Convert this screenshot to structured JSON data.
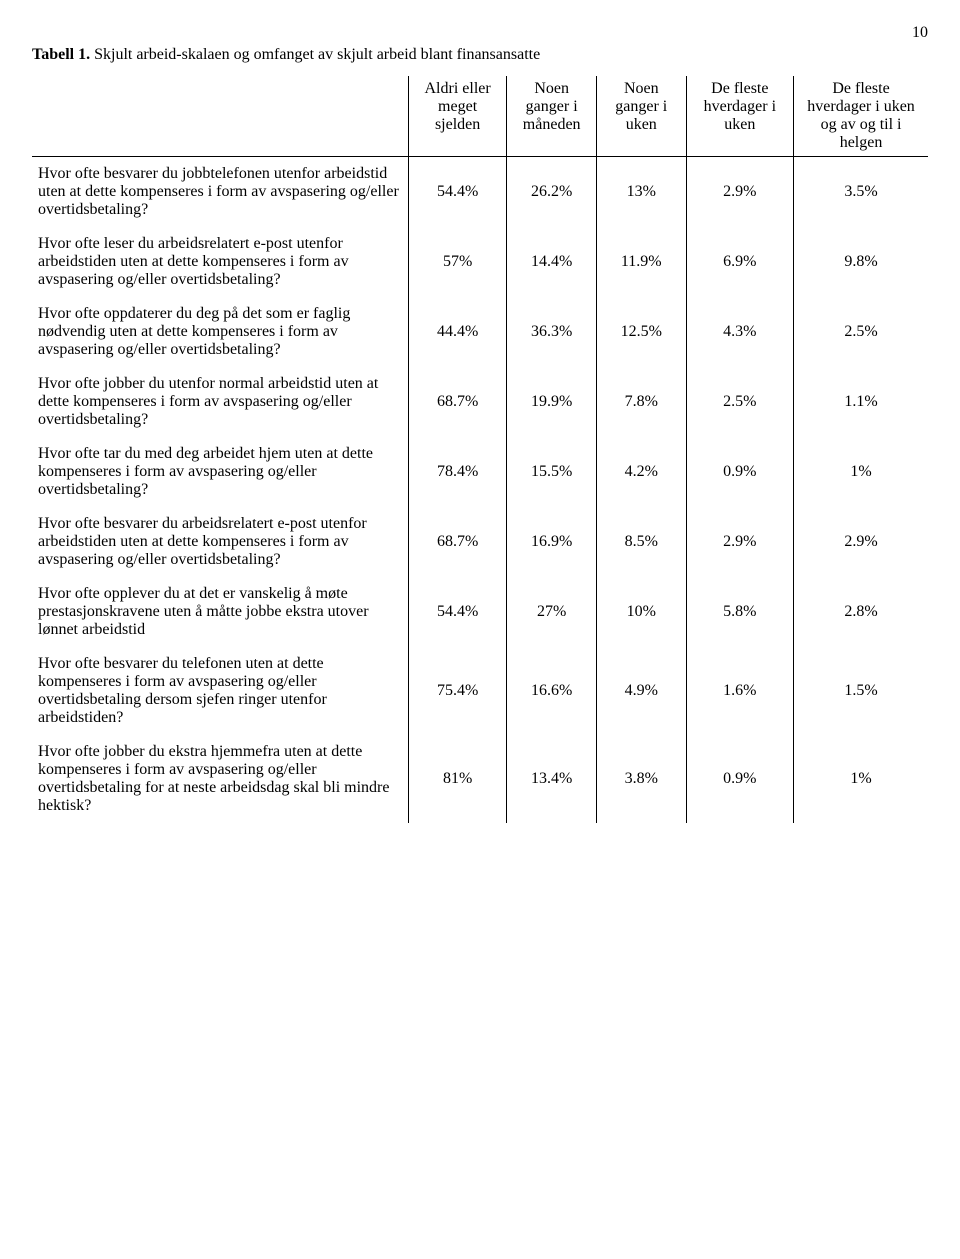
{
  "page_number": "10",
  "caption_prefix": "Tabell 1.",
  "caption_rest": " Skjult arbeid-skalaen og omfanget av skjult arbeid blant finansansatte",
  "headers": {
    "c1": "Aldri eller meget sjelden",
    "c2": "Noen ganger i måneden",
    "c3": "Noen ganger i uken",
    "c4": "De fleste hverdager i uken",
    "c5": "De fleste hverdager i uken og av og til i helgen"
  },
  "rows": [
    {
      "q": "Hvor ofte besvarer du jobbtelefonen utenfor arbeidstid uten at dette kompenseres i form av avspasering og/eller overtidsbetaling?",
      "c1": "54.4%",
      "c2": "26.2%",
      "c3": "13%",
      "c4": "2.9%",
      "c5": "3.5%"
    },
    {
      "q": "Hvor ofte leser du arbeidsrelatert e-post utenfor arbeidstiden uten at dette kompenseres i form av avspasering og/eller overtidsbetaling?",
      "c1": "57%",
      "c2": "14.4%",
      "c3": "11.9%",
      "c4": "6.9%",
      "c5": "9.8%"
    },
    {
      "q": "Hvor ofte oppdaterer du deg på det som er faglig nødvendig uten at dette kompenseres i form av avspasering og/eller overtidsbetaling?",
      "c1": "44.4%",
      "c2": "36.3%",
      "c3": "12.5%",
      "c4": "4.3%",
      "c5": "2.5%"
    },
    {
      "q": "Hvor ofte jobber du utenfor normal arbeidstid uten at dette kompenseres i form av avspasering og/eller overtidsbetaling?",
      "c1": "68.7%",
      "c2": "19.9%",
      "c3": "7.8%",
      "c4": "2.5%",
      "c5": "1.1%"
    },
    {
      "q": "Hvor ofte tar du med deg arbeidet hjem uten at dette kompenseres i form av avspasering og/eller overtidsbetaling?",
      "c1": "78.4%",
      "c2": "15.5%",
      "c3": "4.2%",
      "c4": "0.9%",
      "c5": "1%"
    },
    {
      "q": "Hvor ofte besvarer du arbeidsrelatert e-post utenfor arbeidstiden uten at dette kompenseres i form av avspasering og/eller overtidsbetaling?",
      "c1": "68.7%",
      "c2": "16.9%",
      "c3": "8.5%",
      "c4": "2.9%",
      "c5": "2.9%"
    },
    {
      "q": "Hvor ofte opplever du at det er vanskelig å møte prestasjonskravene uten å måtte jobbe ekstra utover lønnet arbeidstid",
      "c1": "54.4%",
      "c2": "27%",
      "c3": "10%",
      "c4": "5.8%",
      "c5": "2.8%"
    },
    {
      "q": "Hvor ofte besvarer du telefonen uten at dette kompenseres i form av avspasering og/eller overtidsbetaling dersom sjefen ringer utenfor arbeidstiden?",
      "c1": "75.4%",
      "c2": "16.6%",
      "c3": "4.9%",
      "c4": "1.6%",
      "c5": "1.5%"
    },
    {
      "q": "Hvor ofte jobber du ekstra hjemmefra uten at dette kompenseres i form av avspasering og/eller overtidsbetaling for at neste arbeidsdag skal bli mindre hektisk?",
      "c1": "81%",
      "c2": "13.4%",
      "c3": "3.8%",
      "c4": "0.9%",
      "c5": "1%"
    }
  ]
}
